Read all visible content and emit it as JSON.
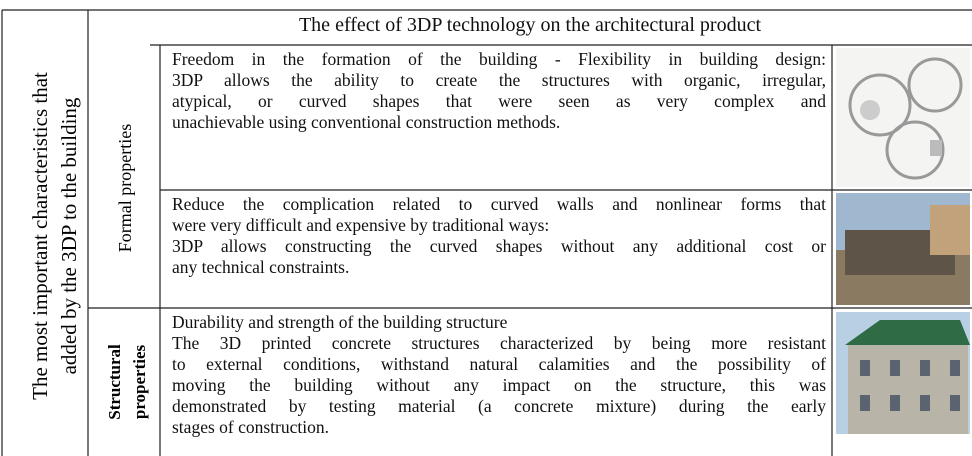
{
  "table": {
    "side_heading": [
      "The most important characteristics that",
      "added by the 3DP to the building"
    ],
    "header": "The effect of 3DP technology on the architectural product",
    "groups": [
      {
        "label": [
          "Formal properties"
        ]
      },
      {
        "label": [
          "Structural",
          "properties"
        ]
      }
    ],
    "rows": [
      {
        "paragraphs": [
          [
            "Freedom in the formation of the building - Flexibility in building design:",
            "3DP allows the ability to create the structures with organic, irregular,",
            "atypical, or curved shapes that were seen as very complex and",
            "unachievable using conventional construction methods."
          ]
        ]
      },
      {
        "paragraphs": [
          [
            "Reduce the complication related to curved walls and nonlinear forms that",
            "were very difficult and expensive by traditional ways:"
          ],
          [
            "3DP allows constructing the curved shapes without any additional cost or",
            "any technical constraints."
          ]
        ]
      },
      {
        "paragraphs": [
          [
            "Durability and strength of the building structure"
          ],
          [
            "The 3D printed concrete structures characterized by being more resistant",
            "to external conditions, withstand natural calamities and the possibility of",
            "moving the building without any impact on the structure, this was",
            "demonstrated by testing material (a concrete mixture) during the early",
            "stages of construction."
          ]
        ]
      }
    ]
  }
}
